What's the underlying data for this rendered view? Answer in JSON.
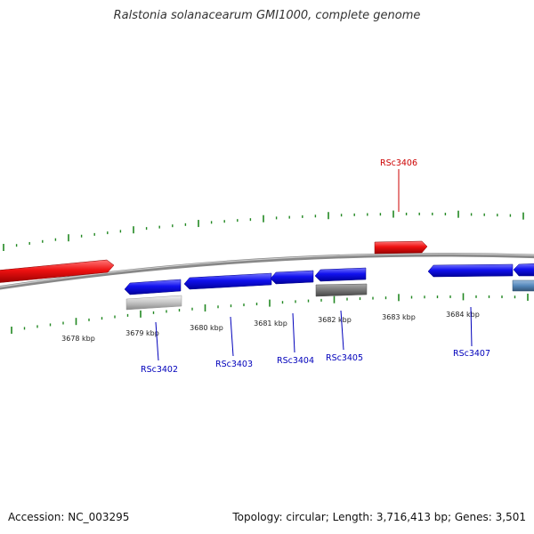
{
  "title": "Ralstonia solanacearum GMI1000, complete genome",
  "footer": {
    "accession": "Accession: NC_003295",
    "topology": "Topology: circular; Length: 3,716,413 bp; Genes: 3,501"
  },
  "colors": {
    "forward_strand_gene": "#ee1111",
    "reverse_strand_gene": "#1111ee",
    "forward_label": "#cc0000",
    "reverse_label": "#0000bb",
    "backbone": "#888888",
    "tick": "#228822",
    "rna_gene": "#bbbbbb",
    "pseudo_gene": "#777777",
    "other_gene": "#5588bb"
  },
  "scale_labels": [
    "3678 kbp",
    "3679 kbp",
    "3680 kbp",
    "3681 kbp",
    "3682 kbp",
    "3683 kbp",
    "3684 kbp"
  ],
  "gene_labels": [
    {
      "name": "RSc3406",
      "strand": "forward"
    },
    {
      "name": "RSc3402",
      "strand": "reverse"
    },
    {
      "name": "RSc3403",
      "strand": "reverse"
    },
    {
      "name": "RSc3404",
      "strand": "reverse"
    },
    {
      "name": "RSc3405",
      "strand": "reverse"
    },
    {
      "name": "RSc3407",
      "strand": "reverse"
    }
  ]
}
